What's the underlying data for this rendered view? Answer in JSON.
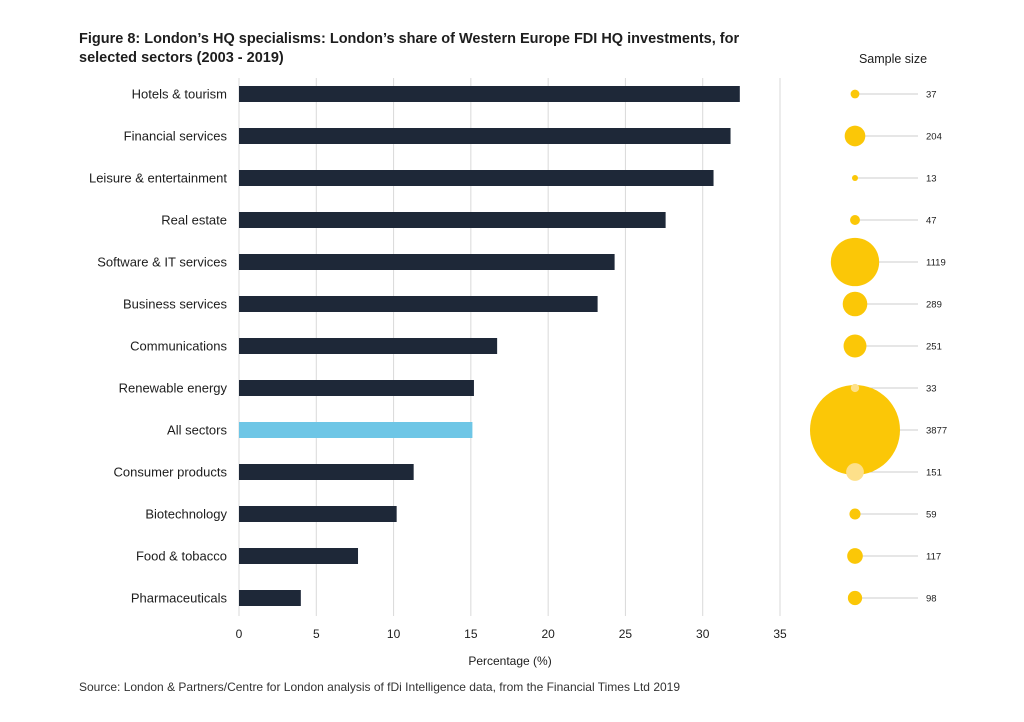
{
  "title": "Figure 8: London’s HQ specialisms: London’s share of Western Europe FDI HQ investments, for selected sectors (2003 - 2019)",
  "source": "Source: London & Partners/Centre for London analysis of fDi Intelligence data, from the Financial Times Ltd 2019",
  "colors": {
    "bar": "#1e2838",
    "highlight": "#6ec6e6",
    "bubble": "#fbc707",
    "bubble_light": "#fde08a",
    "grid": "#d9d9d9",
    "leader": "#cccccc"
  },
  "chart_data": {
    "type": "bar",
    "orientation": "horizontal",
    "title": "Figure 8: London’s HQ specialisms: London’s share of Western Europe FDI HQ investments, for selected sectors (2003 - 2019)",
    "xlabel": "Percentage (%)",
    "ylabel": "",
    "xlim": [
      0,
      35
    ],
    "xticks": [
      "0",
      "5",
      "10",
      "15",
      "20",
      "25",
      "30",
      "35"
    ],
    "grid": true,
    "highlight_category": "All sectors",
    "categories": [
      "Hotels & tourism",
      "Financial services",
      "Leisure & entertainment",
      "Real estate",
      "Software & IT services",
      "Business services",
      "Communications",
      "Renewable energy",
      "All sectors",
      "Consumer products",
      "Biotechnology",
      "Food & tobacco",
      "Pharmaceuticals"
    ],
    "values": [
      32.4,
      31.8,
      30.7,
      27.6,
      24.3,
      23.2,
      16.7,
      15.2,
      15.1,
      11.3,
      10.2,
      7.7,
      4.0
    ],
    "sample_size": {
      "title": "Sample size",
      "values": [
        37,
        204,
        13,
        47,
        1119,
        289,
        251,
        33,
        3877,
        151,
        59,
        117,
        98
      ],
      "labels": [
        "37",
        "204",
        "13",
        "47",
        "1119",
        "289",
        "251",
        "33",
        "3877",
        "151",
        "59",
        "117",
        "98"
      ]
    }
  }
}
